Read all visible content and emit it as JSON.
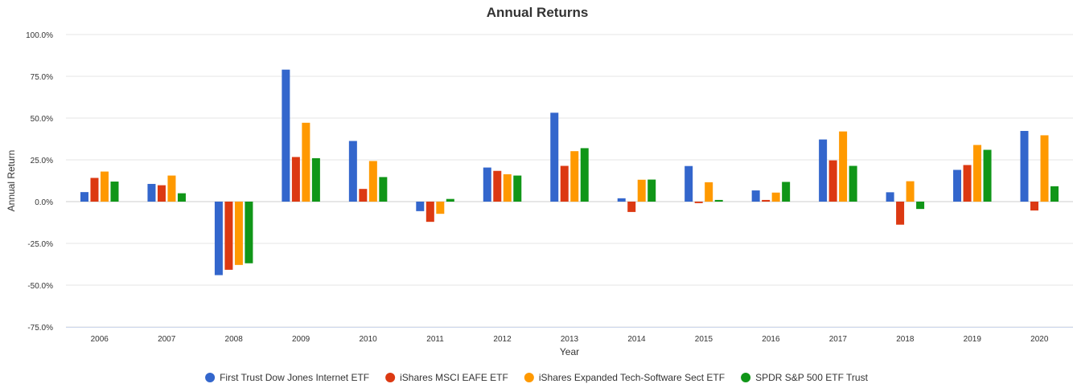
{
  "chart_data": {
    "type": "bar",
    "title": "Annual Returns",
    "xlabel": "Year",
    "ylabel": "Annual Return",
    "ylim": [
      -75,
      100
    ],
    "yticks": [
      "100.0%",
      "75.0%",
      "50.0%",
      "25.0%",
      "0.0%",
      "-25.0%",
      "-50.0%",
      "-75.0%"
    ],
    "ytick_values": [
      100,
      75,
      50,
      25,
      0,
      -25,
      -50,
      -75
    ],
    "grid": true,
    "legend_position": "bottom",
    "categories": [
      "2006",
      "2007",
      "2008",
      "2009",
      "2010",
      "2011",
      "2012",
      "2013",
      "2014",
      "2015",
      "2016",
      "2017",
      "2018",
      "2019",
      "2020"
    ],
    "series": [
      {
        "name": "First Trust Dow Jones Internet ETF",
        "color": "#3366cc",
        "values": [
          5.7,
          10.6,
          -44.0,
          79.0,
          36.3,
          -5.7,
          20.4,
          53.2,
          2.0,
          21.3,
          6.7,
          37.2,
          5.6,
          19.0,
          42.3
        ]
      },
      {
        "name": "iShares MSCI EAFE ETF",
        "color": "#dc3912",
        "values": [
          14.2,
          9.8,
          -40.8,
          26.7,
          7.6,
          -12.1,
          18.4,
          21.4,
          -6.2,
          -0.9,
          1.0,
          24.7,
          -13.8,
          21.9,
          -5.3
        ]
      },
      {
        "name": "iShares Expanded Tech-Software Sect ETF",
        "color": "#ff9900",
        "values": [
          18.0,
          15.6,
          -37.9,
          47.2,
          24.3,
          -7.3,
          16.4,
          30.2,
          13.1,
          11.6,
          5.4,
          42.0,
          12.2,
          33.9,
          39.7
        ]
      },
      {
        "name": "SPDR S&P 500 ETF Trust",
        "color": "#109618",
        "values": [
          12.0,
          5.0,
          -36.9,
          26.0,
          14.7,
          1.6,
          15.6,
          32.0,
          13.2,
          1.0,
          11.8,
          21.4,
          -4.4,
          31.0,
          9.2
        ]
      }
    ]
  }
}
